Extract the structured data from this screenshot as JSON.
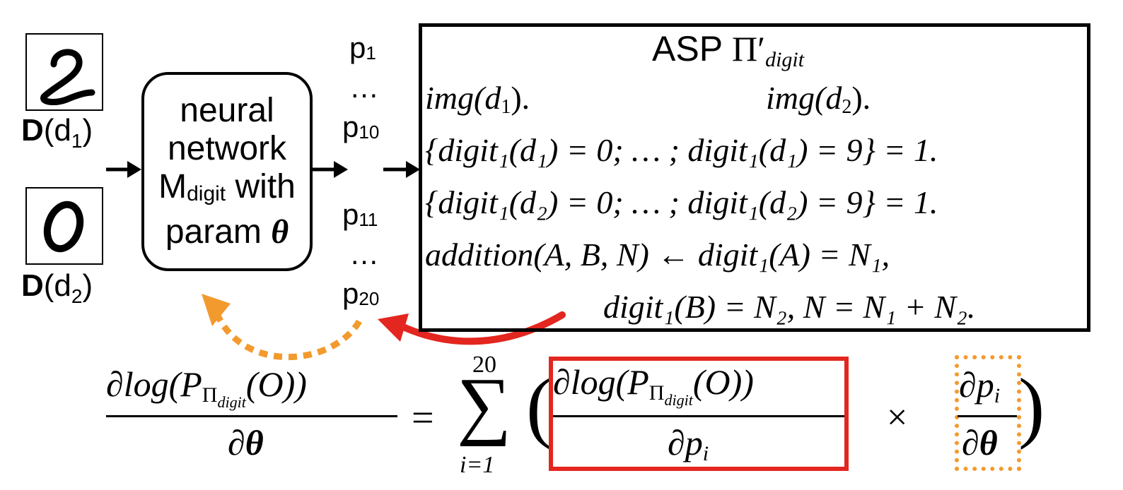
{
  "digits": [
    {
      "label_bold": "D",
      "label_rest": "(d",
      "sub": "1",
      "close": ")"
    },
    {
      "label_bold": "D",
      "label_rest": "(d",
      "sub": "2",
      "close": ")"
    }
  ],
  "network": {
    "line1": "neural",
    "line2": "network",
    "line3_main": "M",
    "line3_sub": "digit",
    "line3_end": " with",
    "line4": "param ",
    "theta": "θ"
  },
  "probs": {
    "p1": "p",
    "p1_sub": "1",
    "dots1": "…",
    "p10": "p",
    "p10_sub": "10",
    "p11": "p",
    "p11_sub": "11",
    "dots2": "…",
    "p20": "p",
    "p20_sub": "20"
  },
  "asp": {
    "title": "ASP ",
    "title_pi": "Π′",
    "title_sub": "digit",
    "img1": "img(d",
    "img1_sub": "1",
    "img1_end": ").",
    "img2": "img(d",
    "img2_sub": "2",
    "img2_end": ").",
    "rule1": "{digit₁(d₁) = 0;  … ; digit₁(d₁) = 9} = 1.",
    "rule2": "{digit₁(d₂) = 0;  … ; digit₁(d₂) = 9} = 1.",
    "rule3": "addition(A, B, N) ← digit₁(A) = N₁,",
    "rule4": "digit₁(B) = N₂, N = N₁ + N₂."
  },
  "equation": {
    "lhs_num": "∂log(P",
    "lhs_num_sub": "Π",
    "lhs_num_subsub": "digit",
    "lhs_num_end": "(O))",
    "lhs_den": "∂θ",
    "equals": "=",
    "sum": "∑",
    "sum_top": "20",
    "sum_bottom": "i=1",
    "open_paren": "(",
    "term1_num": "∂log(P",
    "term1_num_sub": "Π",
    "term1_num_subsub": "digit",
    "term1_num_end": "(O))",
    "term1_den": "∂p",
    "term1_den_sub": "i",
    "times": "×",
    "term2_num": "∂p",
    "term2_num_sub": "i",
    "term2_den": "∂θ",
    "close_paren": ")"
  },
  "colors": {
    "red": "#e3261f",
    "orange": "#f39a2e"
  }
}
